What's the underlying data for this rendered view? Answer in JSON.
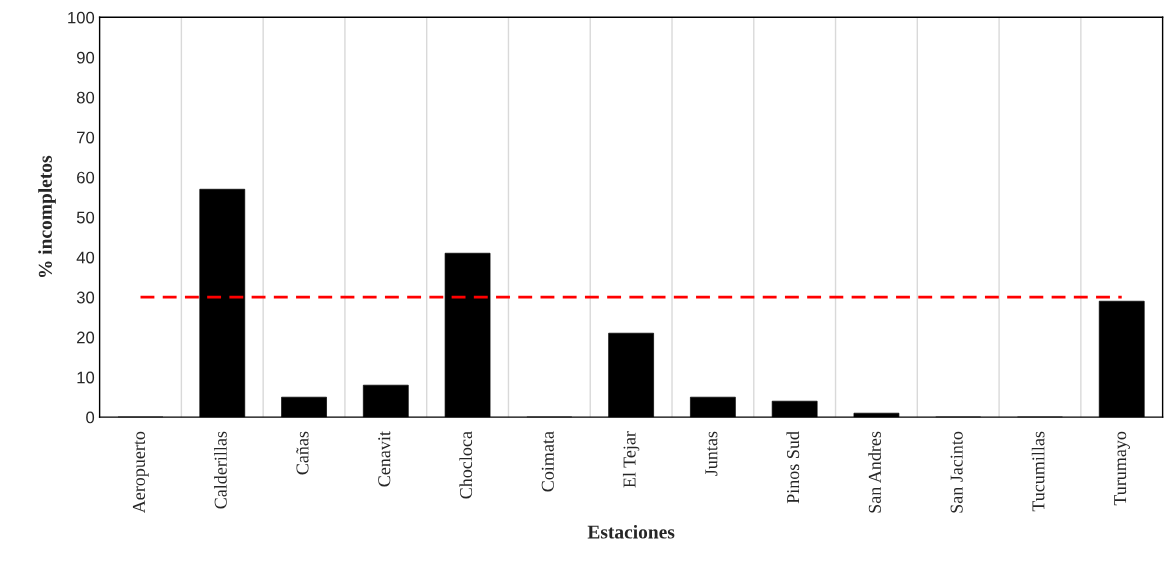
{
  "chart_data": {
    "type": "bar",
    "xlabel": "Estaciones",
    "ylabel": "% incompletos",
    "categories": [
      "Aeropuerto",
      "Calderillas",
      "Cañas",
      "Cenavit",
      "Chocloca",
      "Coimata",
      "El Tejar",
      "Juntas",
      "Pinos Sud",
      "San Andres",
      "San Jacinto",
      "Tucumillas",
      "Turumayo"
    ],
    "values": [
      0,
      57,
      5,
      8,
      41,
      0,
      21,
      5,
      4,
      1,
      0,
      0,
      29
    ],
    "color": "#000000",
    "ylim": [
      0,
      100
    ],
    "yticks": [
      0,
      10,
      20,
      30,
      40,
      50,
      60,
      70,
      80,
      90,
      100
    ],
    "grid": "x",
    "ref_lines": [
      {
        "axis": "y",
        "value": 30,
        "color": "#ff0000",
        "line_style": "dashed"
      }
    ]
  }
}
